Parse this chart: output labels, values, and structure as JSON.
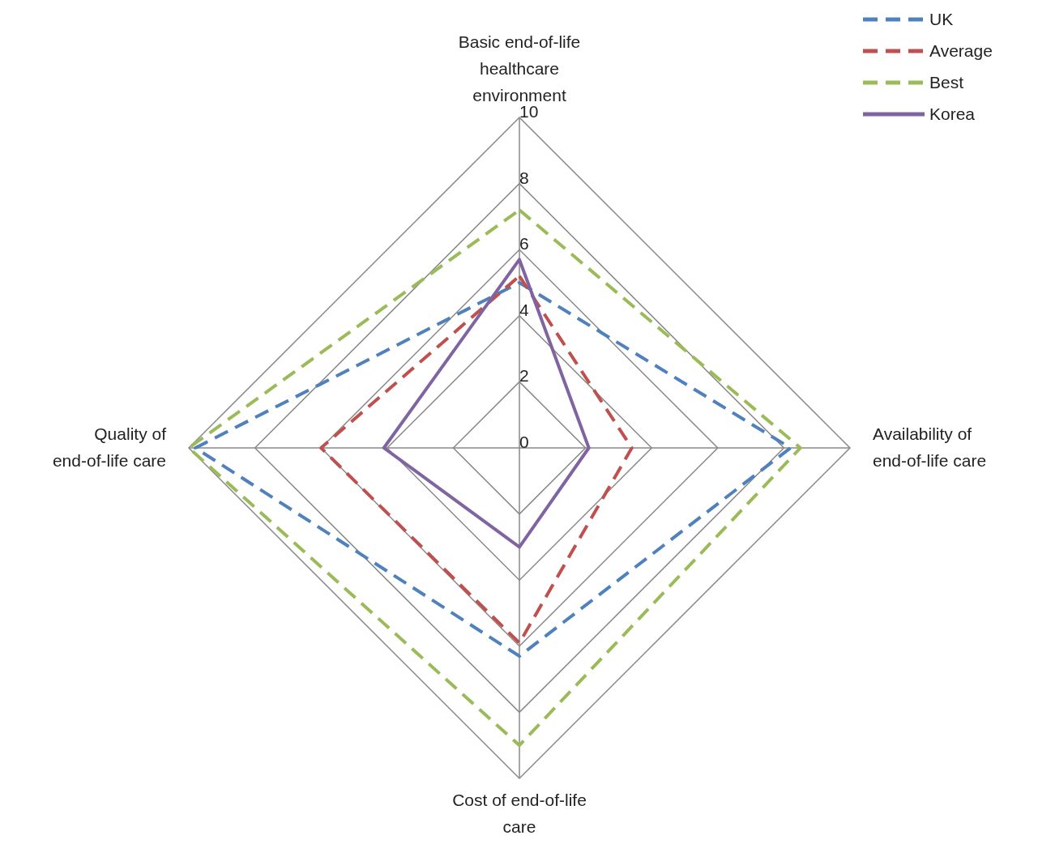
{
  "chart_data": {
    "type": "radar",
    "categories": [
      "Basic end-of-life healthcare environment",
      "Availability of end-of-life care",
      "Cost of end-of-life care",
      "Quality of end-of-life care"
    ],
    "series": [
      {
        "name": "UK",
        "color": "#4f81bd",
        "values": [
          5.0,
          8.2,
          6.3,
          9.8
        ],
        "line_style": "dashed"
      },
      {
        "name": "Average",
        "color": "#c0504d",
        "values": [
          5.2,
          3.4,
          5.9,
          6.0
        ],
        "line_style": "dashed"
      },
      {
        "name": "Best",
        "color": "#9bbb59",
        "values": [
          7.2,
          8.5,
          9.0,
          10.0
        ],
        "line_style": "dashed"
      },
      {
        "name": "Korea",
        "color": "#8064a2",
        "values": [
          5.7,
          2.1,
          3.0,
          4.1
        ],
        "line_style": "solid"
      }
    ],
    "ylim": [
      0,
      10
    ],
    "yticks": [
      0,
      2,
      4,
      6,
      8,
      10
    ],
    "grid": true,
    "legend": "top right"
  }
}
